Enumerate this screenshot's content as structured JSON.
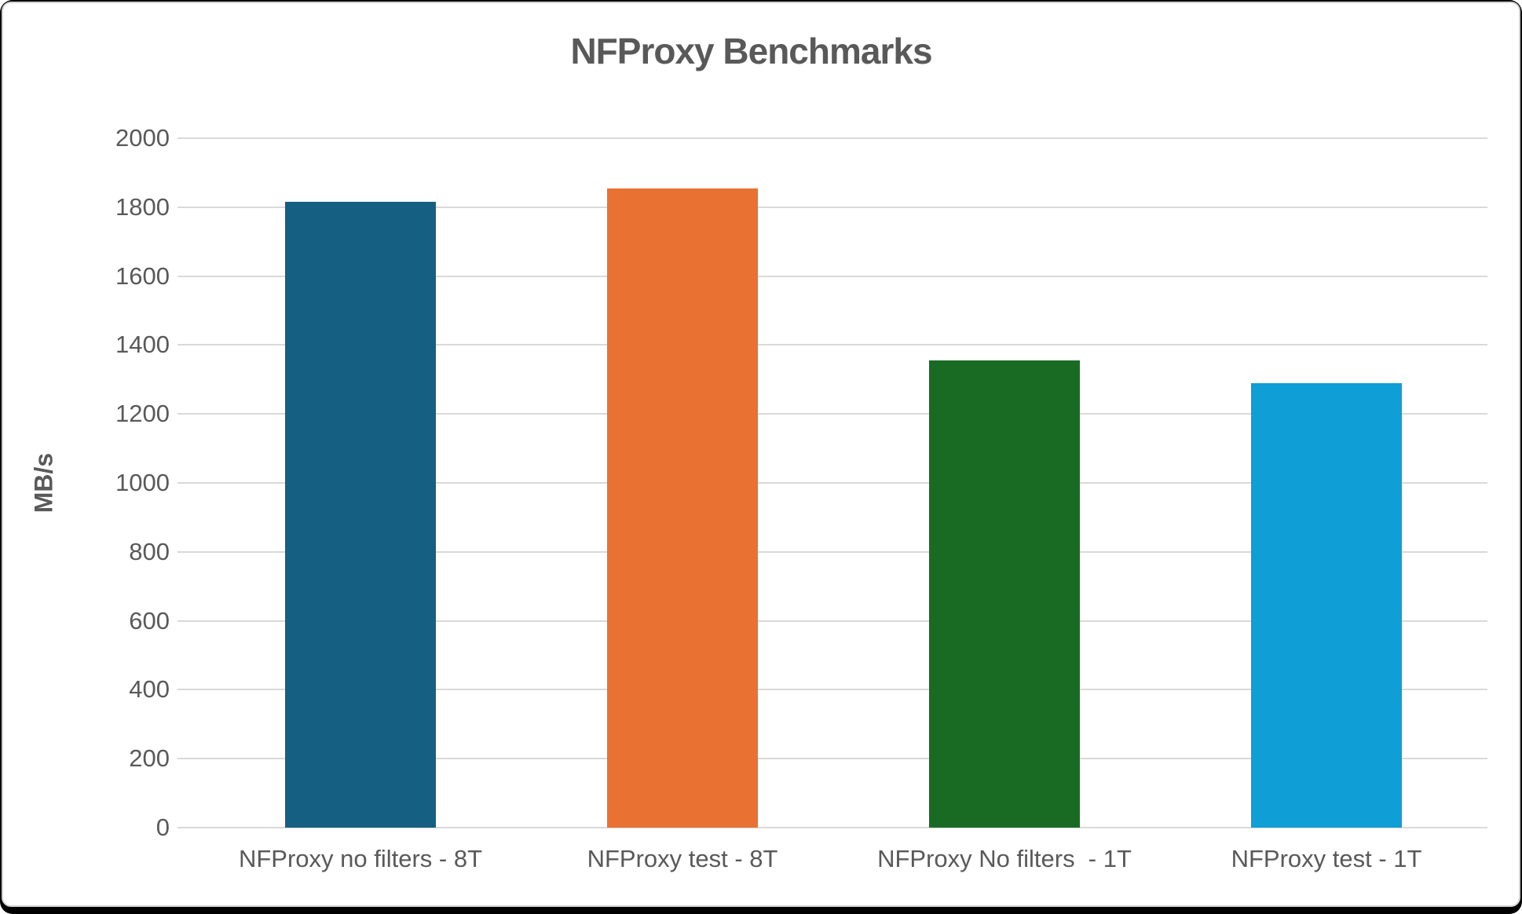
{
  "chart_data": {
    "type": "bar",
    "title": "NFProxy Benchmarks",
    "categories": [
      "NFProxy no filters - 8T",
      "NFProxy test - 8T",
      "NFProxy No filters  - 1T",
      "NFProxy test - 1T"
    ],
    "values": [
      1815,
      1855,
      1355,
      1290
    ],
    "bar_colors": [
      "#156082",
      "#E97132",
      "#196B24",
      "#0F9ED5"
    ],
    "xlabel": "",
    "ylabel": "MB/s",
    "ylim": [
      0,
      2000
    ],
    "ytick_step": 200,
    "grid": true,
    "legend": "none",
    "colors": {
      "title_text": "#595959",
      "axis_text": "#595959",
      "gridline": "#d9d9d9",
      "chart_border": "#d2d2d2",
      "frame": "#000000",
      "background": "#ffffff"
    }
  }
}
